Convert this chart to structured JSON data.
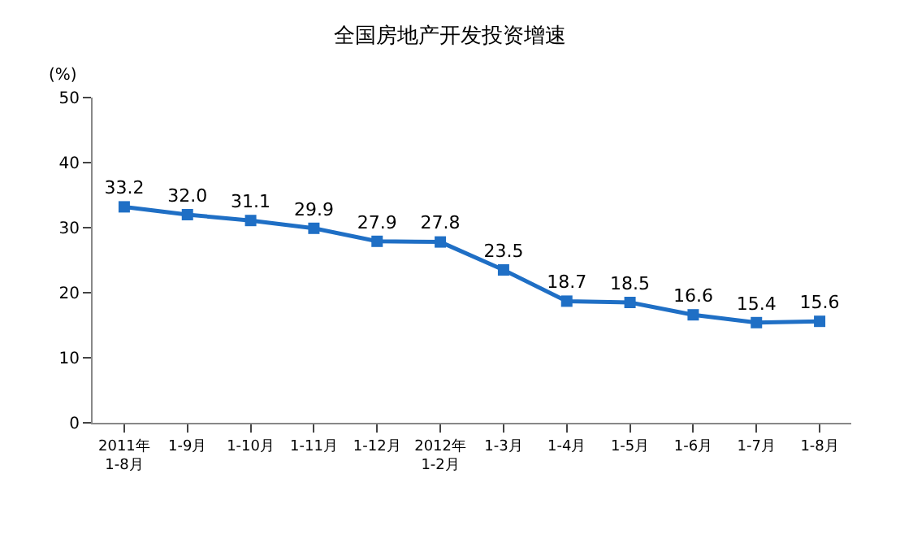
{
  "chart_data": {
    "type": "line",
    "title": "全国房地产开发投资增速",
    "ylabel": "(%)",
    "categories": [
      "2011年\n1-8月",
      "1-9月",
      "1-10月",
      "1-11月",
      "1-12月",
      "2012年\n1-2月",
      "1-3月",
      "1-4月",
      "1-5月",
      "1-6月",
      "1-7月",
      "1-8月"
    ],
    "series": [
      {
        "color": "#1f6fc5",
        "values": [
          33.2,
          32.0,
          31.1,
          29.9,
          27.9,
          27.8,
          23.5,
          18.7,
          18.5,
          16.6,
          15.4,
          15.6
        ],
        "value_labels": [
          "33.2",
          "32.0",
          "31.1",
          "29.9",
          "27.9",
          "27.8",
          "23.5",
          "18.7",
          "18.5",
          "16.6",
          "15.4",
          "15.6"
        ]
      }
    ],
    "ylim": [
      0,
      50
    ],
    "yticks": [
      0,
      10,
      20,
      30,
      40,
      50
    ],
    "legend": false,
    "marker": "square",
    "line_style": "solid"
  }
}
